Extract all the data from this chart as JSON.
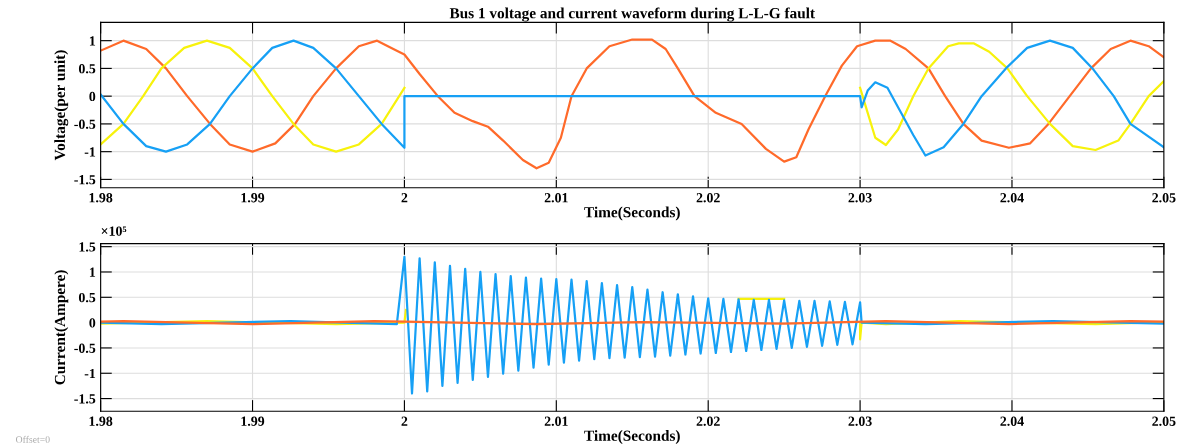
{
  "chart_data": [
    {
      "type": "line",
      "title": "Bus 1 voltage and current waveform during L-L-G fault",
      "xlabel": "Time(Seconds)",
      "ylabel": "Voltage(per unit)",
      "xlim": [
        1.98,
        2.05
      ],
      "xticks": [
        1.98,
        1.99,
        2,
        2.01,
        2.02,
        2.03,
        2.04,
        2.05
      ],
      "ylim": [
        -1.65,
        1.33
      ],
      "yticks": [
        -1.5,
        -1,
        -0.5,
        0,
        0.5,
        1
      ],
      "grid": true,
      "marker": "none",
      "line_style": "solid",
      "series": [
        {
          "color": "#ff6a2a",
          "x": [
            1.98,
            1.9815,
            1.983,
            1.9843,
            1.9857,
            1.9872,
            1.9885,
            1.99,
            1.9915,
            1.9928,
            1.994,
            1.9955,
            1.997,
            1.9982,
            1.9995,
            2.0,
            2.001,
            2.0022,
            2.0033,
            2.0045,
            2.0055,
            2.0065,
            2.0078,
            2.0087,
            2.0095,
            2.0103,
            2.011,
            2.012,
            2.0135,
            2.015,
            2.0163,
            2.0172,
            2.018,
            2.0191,
            2.0205,
            2.0222,
            2.0238,
            2.025,
            2.0258,
            2.0266,
            2.0277,
            2.0288,
            2.0298,
            2.031,
            2.032,
            2.033,
            2.0345,
            2.0356,
            2.0368,
            2.038,
            2.0398,
            2.0412,
            2.0424,
            2.0438,
            2.0452,
            2.0465,
            2.0478,
            2.049,
            2.05
          ],
          "values": [
            0.82,
            1.0,
            0.85,
            0.5,
            0,
            -0.5,
            -0.87,
            -1.0,
            -0.85,
            -0.5,
            0,
            0.5,
            0.9,
            1.0,
            0.82,
            0.75,
            0.4,
            0,
            -0.3,
            -0.45,
            -0.55,
            -0.8,
            -1.15,
            -1.3,
            -1.2,
            -0.75,
            0,
            0.5,
            0.9,
            1.02,
            1.02,
            0.85,
            0.5,
            0,
            -0.3,
            -0.5,
            -0.95,
            -1.18,
            -1.1,
            -0.6,
            0,
            0.55,
            0.9,
            1.0,
            1.0,
            0.85,
            0.5,
            0,
            -0.5,
            -0.8,
            -0.93,
            -0.85,
            -0.5,
            0,
            0.5,
            0.85,
            1.0,
            0.9,
            0.7
          ]
        },
        {
          "color": "#f7f20c",
          "x": [
            1.98,
            1.9815,
            1.9828,
            1.984,
            1.9855,
            1.987,
            1.9885,
            1.99,
            1.9913,
            1.9927,
            1.994,
            1.9955,
            1.997,
            1.9985,
            2.0,
            2.015,
            2.03,
            2.0305,
            2.031,
            2.0317,
            2.0325,
            2.0335,
            2.0345,
            2.0358,
            2.0365,
            2.0375,
            2.0385,
            2.0397,
            2.041,
            2.0425,
            2.044,
            2.0455,
            2.047,
            2.0478,
            2.049,
            2.05
          ],
          "values": [
            -0.87,
            -0.5,
            0,
            0.5,
            0.87,
            1.0,
            0.87,
            0.5,
            0,
            -0.5,
            -0.87,
            -1.0,
            -0.87,
            -0.5,
            0.15,
            null,
            0.15,
            -0.3,
            -0.75,
            -0.88,
            -0.6,
            0,
            0.5,
            0.9,
            0.95,
            0.95,
            0.8,
            0.5,
            0,
            -0.5,
            -0.9,
            -0.97,
            -0.8,
            -0.5,
            0,
            0.27
          ]
        },
        {
          "color": "#16a0f5",
          "x": [
            1.98,
            1.9815,
            1.983,
            1.9843,
            1.9857,
            1.9872,
            1.9885,
            1.99,
            1.9913,
            1.9927,
            1.994,
            1.9955,
            1.997,
            1.9985,
            2.0,
            2.0,
            2.03,
            2.0301,
            2.0305,
            2.031,
            2.0318,
            2.0325,
            2.0335,
            2.0343,
            2.0355,
            2.0368,
            2.038,
            2.0396,
            2.041,
            2.0425,
            2.044,
            2.0453,
            2.0467,
            2.0478,
            2.05
          ],
          "values": [
            0.03,
            -0.5,
            -0.9,
            -1.0,
            -0.87,
            -0.5,
            0,
            0.5,
            0.87,
            1.0,
            0.87,
            0.5,
            0,
            -0.5,
            -0.93,
            0,
            0,
            -0.2,
            0.1,
            0.25,
            0.15,
            -0.2,
            -0.7,
            -1.07,
            -0.92,
            -0.5,
            0,
            0.5,
            0.87,
            1.0,
            0.87,
            0.5,
            0,
            -0.5,
            -0.92
          ]
        }
      ]
    },
    {
      "type": "line",
      "xlabel": "Time(Seconds)",
      "ylabel": "Current(Ampere)",
      "xlim": [
        1.98,
        2.05
      ],
      "xticks": [
        1.98,
        1.99,
        2,
        2.01,
        2.02,
        2.03,
        2.04,
        2.05
      ],
      "ylim": [
        -1.75,
        1.56
      ],
      "yticks": [
        -1.5,
        -1,
        -0.5,
        0,
        0.5,
        1,
        1.5
      ],
      "grid": true,
      "marker": "none",
      "line_style": "solid",
      "annotations": [
        "×10⁵",
        "Offset=0"
      ],
      "series": [
        {
          "color": "#f7f20c",
          "x": [
            1.98,
            1.987,
            1.9955,
            2.0,
            2.0001,
            2.015,
            2.022,
            2.025,
            2.0255,
            2.03,
            2.03,
            2.0301,
            2.0317,
            2.0365,
            2.0455,
            2.05
          ],
          "values": [
            -0.02,
            0.03,
            -0.03,
            0.0,
            0.25,
            null,
            0.47,
            0.47,
            null,
            0.0,
            -0.33,
            0,
            -0.03,
            0.03,
            -0.03,
            0.01
          ]
        },
        {
          "color": "#16a0f5",
          "x": [
            1.98,
            1.984,
            1.9925,
            1.9995,
            2.0,
            2.0005,
            2.001,
            2.0015,
            2.002,
            2.0025,
            2.003,
            2.0035,
            2.004,
            2.0045,
            2.005,
            2.0055,
            2.006,
            2.0065,
            2.007,
            2.0075,
            2.008,
            2.0085,
            2.009,
            2.0095,
            2.01,
            2.0105,
            2.011,
            2.0115,
            2.012,
            2.0125,
            2.013,
            2.0135,
            2.014,
            2.0145,
            2.015,
            2.0155,
            2.016,
            2.0165,
            2.017,
            2.0175,
            2.018,
            2.0185,
            2.019,
            2.0195,
            2.02,
            2.0205,
            2.021,
            2.0215,
            2.022,
            2.0225,
            2.023,
            2.0235,
            2.024,
            2.0245,
            2.025,
            2.0255,
            2.026,
            2.0265,
            2.027,
            2.0275,
            2.028,
            2.0285,
            2.029,
            2.0295,
            2.03,
            2.0301,
            2.0343,
            2.0427,
            2.05
          ],
          "values": [
            0,
            -0.03,
            0.03,
            -0.03,
            1.3,
            -1.4,
            1.27,
            -1.36,
            1.19,
            -1.25,
            1.12,
            -1.19,
            1.06,
            -1.13,
            1.0,
            -1.07,
            0.96,
            -1.01,
            0.92,
            -0.95,
            0.89,
            -0.89,
            0.87,
            -0.83,
            0.86,
            -0.79,
            0.85,
            -0.75,
            0.82,
            -0.72,
            0.78,
            -0.7,
            0.74,
            -0.69,
            0.7,
            -0.68,
            0.65,
            -0.67,
            0.6,
            -0.65,
            0.56,
            -0.63,
            0.52,
            -0.61,
            0.48,
            -0.6,
            0.47,
            -0.58,
            0.46,
            -0.56,
            0.45,
            -0.54,
            0.45,
            -0.52,
            0.44,
            -0.5,
            0.43,
            -0.48,
            0.43,
            -0.46,
            0.42,
            -0.44,
            0.41,
            -0.43,
            0.4,
            0,
            -0.03,
            0.03,
            -0.02
          ]
        },
        {
          "color": "#ff6a2a",
          "x": [
            1.98,
            1.9815,
            1.99,
            1.998,
            2.0,
            2.0087,
            2.0155,
            2.025,
            2.0317,
            2.0398,
            2.0478,
            2.05
          ],
          "values": [
            0.02,
            0.03,
            -0.03,
            0.03,
            0.02,
            -0.03,
            0.01,
            -0.02,
            0.03,
            -0.03,
            0.03,
            0.02
          ]
        }
      ]
    }
  ]
}
